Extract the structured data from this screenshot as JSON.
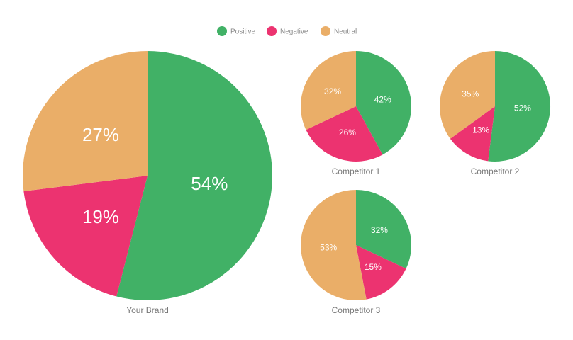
{
  "legend": [
    {
      "name": "Positive",
      "color": "#41b166"
    },
    {
      "name": "Negative",
      "color": "#ec3370"
    },
    {
      "name": "Neutral",
      "color": "#eaae68"
    }
  ],
  "chart_data": [
    {
      "type": "pie",
      "title": "Your Brand",
      "slices": [
        {
          "name": "Positive",
          "value": 54,
          "label": "54%",
          "color": "#41b166"
        },
        {
          "name": "Negative",
          "value": 19,
          "label": "19%",
          "color": "#ec3370"
        },
        {
          "name": "Neutral",
          "value": 27,
          "label": "27%",
          "color": "#eaae68"
        }
      ]
    },
    {
      "type": "pie",
      "title": "Competitor 1",
      "slices": [
        {
          "name": "Positive",
          "value": 42,
          "label": "42%",
          "color": "#41b166"
        },
        {
          "name": "Negative",
          "value": 26,
          "label": "26%",
          "color": "#ec3370"
        },
        {
          "name": "Neutral",
          "value": 32,
          "label": "32%",
          "color": "#eaae68"
        }
      ]
    },
    {
      "type": "pie",
      "title": "Competitor 2",
      "slices": [
        {
          "name": "Positive",
          "value": 52,
          "label": "52%",
          "color": "#41b166"
        },
        {
          "name": "Negative",
          "value": 13,
          "label": "13%",
          "color": "#ec3370"
        },
        {
          "name": "Neutral",
          "value": 35,
          "label": "35%",
          "color": "#eaae68"
        }
      ]
    },
    {
      "type": "pie",
      "title": "Competitor 3",
      "slices": [
        {
          "name": "Positive",
          "value": 32,
          "label": "32%",
          "color": "#41b166"
        },
        {
          "name": "Negative",
          "value": 15,
          "label": "15%",
          "color": "#ec3370"
        },
        {
          "name": "Neutral",
          "value": 53,
          "label": "53%",
          "color": "#eaae68"
        }
      ]
    }
  ]
}
